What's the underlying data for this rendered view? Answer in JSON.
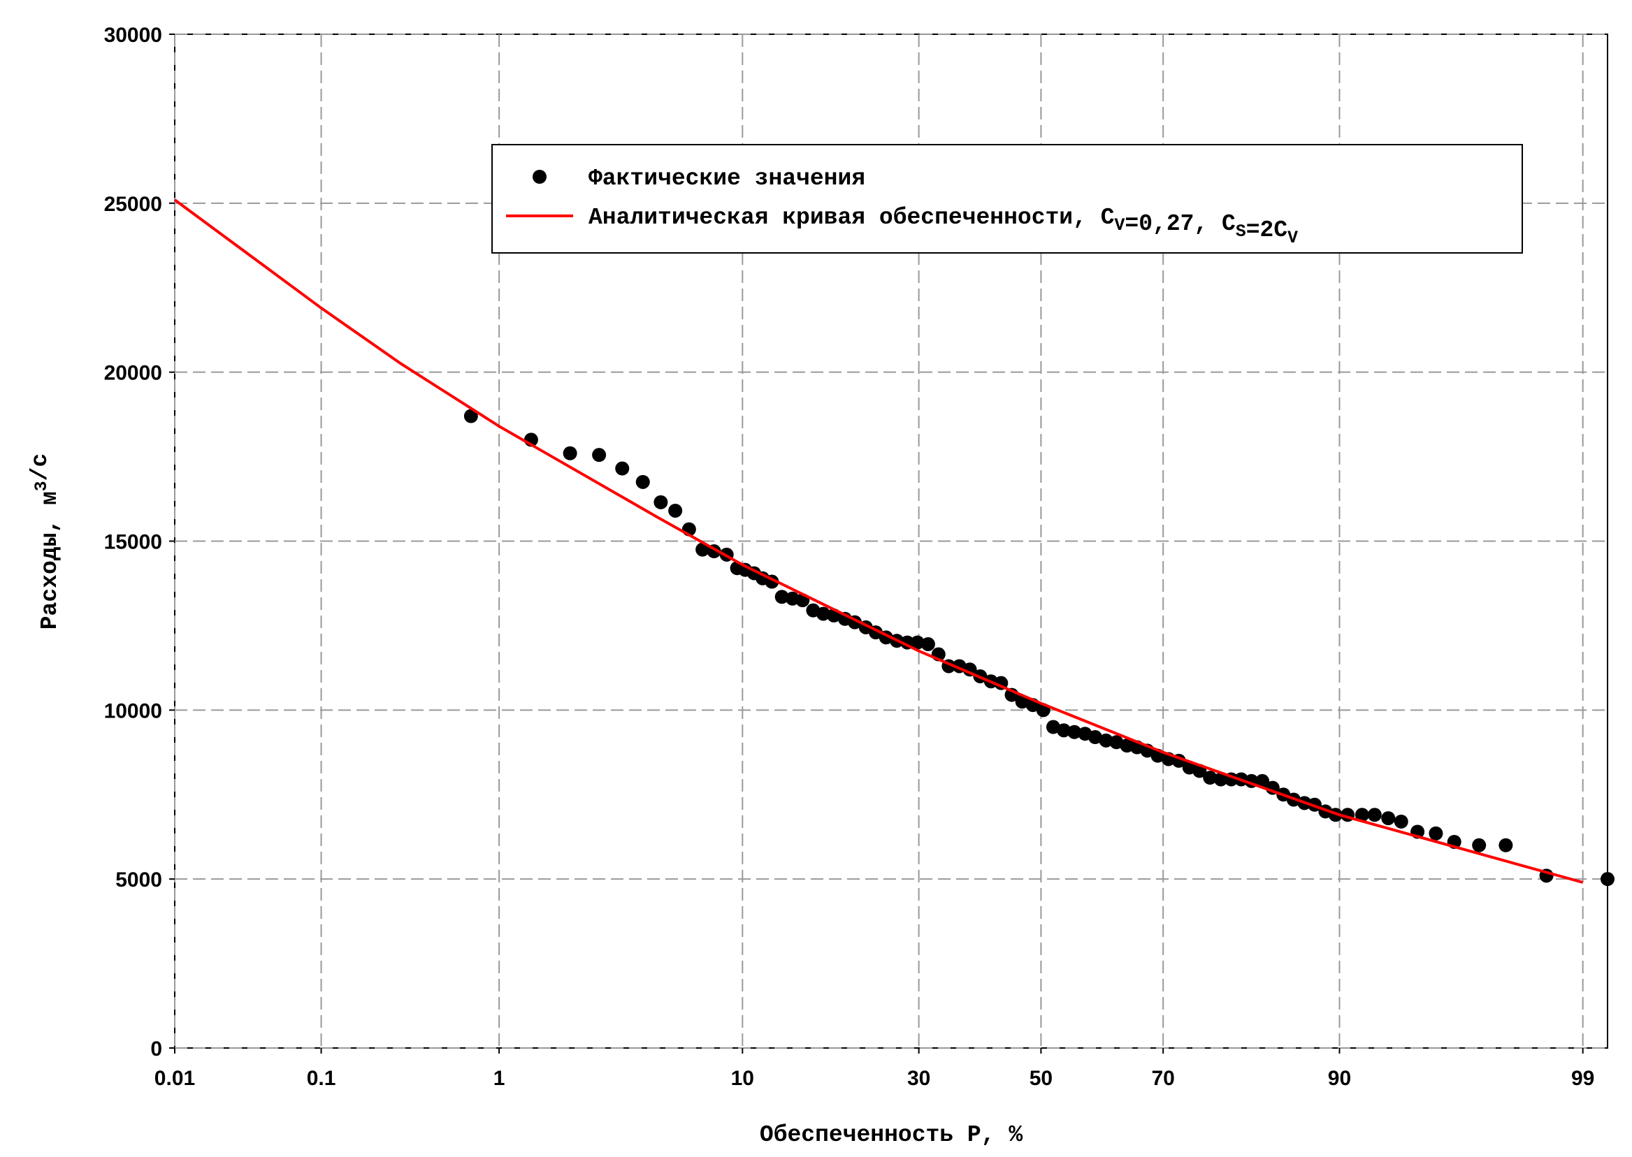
{
  "chart_data": {
    "type": "scatter_line",
    "x_label": "Обеспеченность P, %",
    "y_label": "Расходы, м3/с",
    "x_scale": "probability",
    "xlim": [
      0.01,
      99.25
    ],
    "xticks": [
      0.01,
      0.1,
      1,
      10,
      30,
      50,
      70,
      90,
      99
    ],
    "ylim": [
      0,
      30000
    ],
    "yticks": [
      0,
      5000,
      10000,
      15000,
      20000,
      25000,
      30000
    ],
    "grid": true,
    "legend": "top-right",
    "series": [
      {
        "name": "Фактические значения",
        "kind": "points",
        "color": "#000000",
        "x": [
          0.72,
          1.43,
          2.16,
          2.89,
          3.61,
          4.37,
          5.13,
          5.82,
          6.54,
          7.31,
          8.02,
          8.86,
          9.6,
          10.2,
          10.9,
          11.6,
          12.4,
          13.3,
          14.3,
          15.3,
          16.4,
          17.5,
          18.7,
          20.0,
          21.2,
          22.6,
          23.9,
          25.3,
          26.8,
          28.3,
          29.8,
          31.4,
          33.0,
          34.6,
          36.3,
          38.0,
          39.7,
          41.5,
          43.2,
          45.0,
          46.8,
          48.6,
          50.4,
          52.1,
          53.9,
          55.7,
          57.5,
          59.2,
          61.0,
          62.7,
          64.4,
          66.0,
          67.6,
          69.2,
          70.8,
          72.3,
          73.8,
          75.2,
          76.6,
          78.0,
          79.3,
          80.5,
          81.7,
          82.9,
          84.0,
          85.1,
          86.1,
          87.1,
          88.0,
          88.9,
          89.7,
          90.6,
          91.6,
          92.4,
          93.2,
          93.9,
          94.7,
          95.5,
          96.2,
          97.0,
          97.7,
          98.5,
          99.25
        ],
        "values": [
          18700,
          18000,
          17600,
          17550,
          17150,
          16750,
          16150,
          15900,
          15350,
          14750,
          14700,
          14600,
          14200,
          14150,
          14050,
          13900,
          13800,
          13350,
          13300,
          13250,
          12950,
          12850,
          12800,
          12700,
          12600,
          12450,
          12300,
          12150,
          12050,
          12000,
          12000,
          11950,
          11650,
          11300,
          11300,
          11200,
          11000,
          10850,
          10800,
          10450,
          10250,
          10150,
          10000,
          9500,
          9400,
          9350,
          9300,
          9200,
          9100,
          9050,
          8950,
          8900,
          8800,
          8650,
          8550,
          8500,
          8300,
          8200,
          8000,
          7950,
          7950,
          7950,
          7900,
          7900,
          7700,
          7500,
          7350,
          7250,
          7200,
          7000,
          6900,
          6900,
          6900,
          6900,
          6800,
          6700,
          6400,
          6350,
          6100,
          6000,
          6000,
          5100,
          5000
        ]
      },
      {
        "name": "Аналитическая кривая обеспеченности, CV=0,27, CS=2CV",
        "kind": "line",
        "color": "#ff0000",
        "x": [
          0.01,
          0.1,
          0.3,
          1,
          5,
          10,
          30,
          50,
          70,
          90,
          99
        ],
        "values": [
          25100,
          21900,
          20250,
          18400,
          15700,
          14300,
          11750,
          10200,
          8750,
          6900,
          4900
        ]
      }
    ]
  }
}
